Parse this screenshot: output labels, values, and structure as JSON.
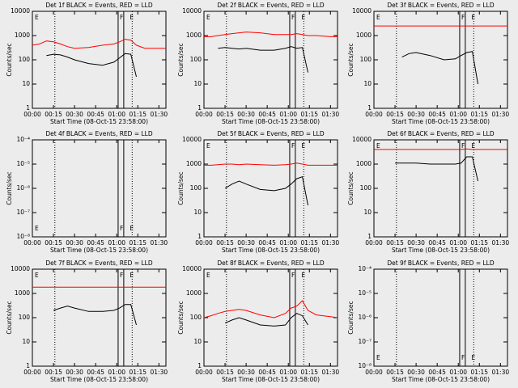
{
  "chart_data": [
    {
      "type": "line",
      "title": "Det 1f BLACK = Events, RED = LLD",
      "x_label": "Start Time (08-Oct-15 23:58:00)",
      "y_label": "Counts/sec",
      "log_scale": true,
      "x": [
        0,
        5,
        10,
        15,
        20,
        25,
        30,
        40,
        50,
        58,
        62,
        66,
        70,
        74,
        80,
        90,
        95
      ],
      "series": [
        {
          "name": "RED = LLD",
          "color": "#ff0000",
          "values": [
            400,
            450,
            600,
            550,
            450,
            350,
            300,
            320,
            400,
            450,
            550,
            700,
            650,
            400,
            300,
            300,
            300
          ]
        },
        {
          "name": "BLACK = Events",
          "color": "#000000",
          "values": [
            null,
            null,
            150,
            170,
            160,
            130,
            100,
            70,
            60,
            80,
            120,
            180,
            170,
            20,
            null,
            null,
            null
          ]
        }
      ],
      "xlim": [
        0,
        95
      ],
      "xticks": [
        {
          "value": 0,
          "label": "00:00"
        },
        {
          "value": 15,
          "label": "00:15"
        },
        {
          "value": 30,
          "label": "00:30"
        },
        {
          "value": 45,
          "label": "00:45"
        },
        {
          "value": 60,
          "label": "01:00"
        },
        {
          "value": 75,
          "label": "01:15"
        },
        {
          "value": 90,
          "label": "01:30"
        }
      ],
      "ylim": [
        1,
        10000
      ],
      "yticks": [
        1,
        10,
        100,
        1000,
        10000
      ],
      "dotted_lines": [
        16,
        71
      ],
      "solid_lines": [
        61,
        65
      ],
      "annotations": [
        "E",
        "F",
        "E"
      ]
    },
    {
      "type": "line",
      "title": "Det 2f BLACK = Events, RED = LLD",
      "x_label": "Start Time (08-Oct-15 23:58:00)",
      "y_label": "Counts/sec",
      "log_scale": true,
      "x": [
        0,
        5,
        10,
        15,
        20,
        25,
        30,
        40,
        50,
        58,
        62,
        66,
        70,
        74,
        80,
        90,
        95
      ],
      "series": [
        {
          "name": "RED = LLD",
          "color": "#ff0000",
          "values": [
            900,
            900,
            1000,
            1100,
            1200,
            1300,
            1400,
            1300,
            1100,
            1100,
            1100,
            1200,
            1100,
            1000,
            1000,
            900,
            900
          ]
        },
        {
          "name": "BLACK = Events",
          "color": "#000000",
          "values": [
            null,
            null,
            300,
            320,
            300,
            280,
            300,
            250,
            250,
            300,
            350,
            300,
            320,
            30,
            null,
            null,
            null
          ]
        }
      ],
      "xlim": [
        0,
        95
      ],
      "xticks": [
        {
          "value": 0,
          "label": "00:00"
        },
        {
          "value": 15,
          "label": "00:15"
        },
        {
          "value": 30,
          "label": "00:30"
        },
        {
          "value": 45,
          "label": "00:45"
        },
        {
          "value": 60,
          "label": "01:00"
        },
        {
          "value": 75,
          "label": "01:15"
        },
        {
          "value": 90,
          "label": "01:30"
        }
      ],
      "ylim": [
        1,
        10000
      ],
      "yticks": [
        1,
        10,
        100,
        1000,
        10000
      ],
      "dotted_lines": [
        16,
        71
      ],
      "solid_lines": [
        61,
        65
      ],
      "annotations": [
        "E",
        "F",
        "E"
      ]
    },
    {
      "type": "line",
      "title": "Det 3f BLACK = Events, RED = LLD",
      "x_label": "Start Time (08-Oct-15 23:58:00)",
      "y_label": "Counts/sec",
      "log_scale": true,
      "x": [
        0,
        5,
        10,
        15,
        20,
        25,
        30,
        40,
        50,
        58,
        62,
        66,
        70,
        74,
        80,
        90,
        95
      ],
      "series": [
        {
          "name": "RED = LLD",
          "color": "#ff0000",
          "values": [
            2500,
            2500,
            2500,
            2500,
            2500,
            2500,
            2500,
            2500,
            2500,
            2500,
            2500,
            2500,
            2500,
            2500,
            2500,
            2500,
            2500
          ]
        },
        {
          "name": "BLACK = Events",
          "color": "#000000",
          "values": [
            null,
            null,
            null,
            null,
            130,
            180,
            200,
            150,
            100,
            110,
            150,
            200,
            220,
            10,
            null,
            null,
            null
          ]
        }
      ],
      "xlim": [
        0,
        95
      ],
      "xticks": [
        {
          "value": 0,
          "label": "00:00"
        },
        {
          "value": 15,
          "label": "00:15"
        },
        {
          "value": 30,
          "label": "00:30"
        },
        {
          "value": 45,
          "label": "00:45"
        },
        {
          "value": 60,
          "label": "01:00"
        },
        {
          "value": 75,
          "label": "01:15"
        },
        {
          "value": 90,
          "label": "01:30"
        }
      ],
      "ylim": [
        1,
        10000
      ],
      "yticks": [
        1,
        10,
        100,
        1000,
        10000
      ],
      "dotted_lines": [
        16,
        71
      ],
      "solid_lines": [
        61,
        65
      ],
      "annotations": [
        "E",
        "F",
        "E"
      ]
    },
    {
      "type": "line",
      "title": "Det 4f BLACK = Events, RED = LLD",
      "x_label": "Start Time (08-Oct-15 23:58:00)",
      "y_label": "Counts/sec",
      "log_scale": true,
      "x": [
        0,
        5,
        10,
        15,
        20,
        25,
        30,
        40,
        50,
        58,
        62,
        66,
        70,
        74,
        80,
        90,
        95
      ],
      "series": [],
      "xlim": [
        0,
        95
      ],
      "xticks": [
        {
          "value": 0,
          "label": "00:00"
        },
        {
          "value": 15,
          "label": "00:15"
        },
        {
          "value": 30,
          "label": "00:30"
        },
        {
          "value": 45,
          "label": "00:45"
        },
        {
          "value": 60,
          "label": "01:00"
        },
        {
          "value": 75,
          "label": "01:15"
        },
        {
          "value": 90,
          "label": "01:30"
        }
      ],
      "ylim": [
        1e-08,
        0.0001
      ],
      "yticks": [
        {
          "value": 1e-08,
          "label": "10⁻⁸"
        },
        {
          "value": 1e-07,
          "label": "10⁻⁷"
        },
        {
          "value": 1e-06,
          "label": "10⁻⁶"
        },
        {
          "value": 1e-05,
          "label": "10⁻⁵"
        },
        {
          "value": 0.0001,
          "label": "10⁻⁴"
        }
      ],
      "dotted_lines": [
        16,
        71
      ],
      "solid_lines": [
        61,
        65
      ],
      "annotations": [
        "E",
        "F",
        "E"
      ]
    },
    {
      "type": "line",
      "title": "Det 5f BLACK = Events, RED = LLD",
      "x_label": "Start Time (08-Oct-15 23:58:00)",
      "y_label": "Counts/sec",
      "log_scale": true,
      "x": [
        0,
        5,
        10,
        15,
        20,
        25,
        30,
        40,
        50,
        58,
        62,
        66,
        70,
        74,
        80,
        90,
        95
      ],
      "series": [
        {
          "name": "RED = LLD",
          "color": "#ff0000",
          "values": [
            900,
            900,
            950,
            1000,
            1000,
            950,
            1000,
            950,
            900,
            950,
            1000,
            1100,
            1000,
            900,
            900,
            900,
            900
          ]
        },
        {
          "name": "BLACK = Events",
          "color": "#000000",
          "values": [
            null,
            null,
            null,
            100,
            150,
            200,
            150,
            90,
            80,
            100,
            150,
            250,
            300,
            20,
            null,
            null,
            null
          ]
        }
      ],
      "xlim": [
        0,
        95
      ],
      "xticks": [
        {
          "value": 0,
          "label": "00:00"
        },
        {
          "value": 15,
          "label": "00:15"
        },
        {
          "value": 30,
          "label": "00:30"
        },
        {
          "value": 45,
          "label": "00:45"
        },
        {
          "value": 60,
          "label": "01:00"
        },
        {
          "value": 75,
          "label": "01:15"
        },
        {
          "value": 90,
          "label": "01:30"
        }
      ],
      "ylim": [
        1,
        10000
      ],
      "yticks": [
        1,
        10,
        100,
        1000,
        10000
      ],
      "dotted_lines": [
        16,
        71
      ],
      "solid_lines": [
        61,
        65
      ],
      "annotations": [
        "E",
        "F",
        "E"
      ]
    },
    {
      "type": "line",
      "title": "Det 6f BLACK = Events, RED = LLD",
      "x_label": "Start Time (08-Oct-15 23:58:00)",
      "y_label": "Counts/sec",
      "log_scale": true,
      "x": [
        0,
        5,
        10,
        15,
        20,
        25,
        30,
        40,
        50,
        58,
        62,
        66,
        70,
        74,
        80,
        90,
        95
      ],
      "series": [
        {
          "name": "RED = LLD",
          "color": "#ff0000",
          "values": [
            4000,
            4000,
            4000,
            4000,
            4000,
            4000,
            4000,
            4000,
            4000,
            4000,
            4000,
            4200,
            4000,
            4000,
            4000,
            4000,
            4000
          ]
        },
        {
          "name": "BLACK = Events",
          "color": "#000000",
          "values": [
            null,
            null,
            null,
            1100,
            1100,
            1100,
            1100,
            1000,
            1000,
            1000,
            1100,
            2000,
            2000,
            200,
            null,
            null,
            null
          ]
        }
      ],
      "xlim": [
        0,
        95
      ],
      "xticks": [
        {
          "value": 0,
          "label": "00:00"
        },
        {
          "value": 15,
          "label": "00:15"
        },
        {
          "value": 30,
          "label": "00:30"
        },
        {
          "value": 45,
          "label": "00:45"
        },
        {
          "value": 60,
          "label": "01:00"
        },
        {
          "value": 75,
          "label": "01:15"
        },
        {
          "value": 90,
          "label": "01:30"
        }
      ],
      "ylim": [
        1,
        10000
      ],
      "yticks": [
        1,
        10,
        100,
        1000,
        10000
      ],
      "dotted_lines": [
        16,
        71
      ],
      "solid_lines": [
        61,
        65
      ],
      "annotations": [
        "E",
        "F",
        "E"
      ]
    },
    {
      "type": "line",
      "title": "Det 7f BLACK = Events, RED = LLD",
      "x_label": "Start Time (08-Oct-15 23:58:00)",
      "y_label": "Counts/sec",
      "log_scale": true,
      "x": [
        0,
        5,
        10,
        15,
        20,
        25,
        30,
        40,
        50,
        58,
        62,
        66,
        70,
        74,
        80,
        90,
        95
      ],
      "series": [
        {
          "name": "RED = LLD",
          "color": "#ff0000",
          "values": [
            1800,
            1800,
            1800,
            1800,
            1800,
            1800,
            1800,
            1800,
            1800,
            1800,
            1800,
            1800,
            1800,
            1800,
            1800,
            1800,
            1800
          ]
        },
        {
          "name": "BLACK = Events",
          "color": "#000000",
          "values": [
            null,
            null,
            null,
            200,
            250,
            300,
            250,
            180,
            180,
            200,
            250,
            350,
            350,
            50,
            null,
            null,
            null
          ]
        }
      ],
      "xlim": [
        0,
        95
      ],
      "xticks": [
        {
          "value": 0,
          "label": "00:00"
        },
        {
          "value": 15,
          "label": "00:15"
        },
        {
          "value": 30,
          "label": "00:30"
        },
        {
          "value": 45,
          "label": "00:45"
        },
        {
          "value": 60,
          "label": "01:00"
        },
        {
          "value": 75,
          "label": "01:15"
        },
        {
          "value": 90,
          "label": "01:30"
        }
      ],
      "ylim": [
        1,
        10000
      ],
      "yticks": [
        1,
        10,
        100,
        1000,
        10000
      ],
      "dotted_lines": [
        16,
        71
      ],
      "solid_lines": [
        61,
        65
      ],
      "annotations": [
        "E",
        "F",
        "E"
      ]
    },
    {
      "type": "line",
      "title": "Det 8f BLACK = Events, RED = LLD",
      "x_label": "Start Time (08-Oct-15 23:58:00)",
      "y_label": "Counts/sec",
      "log_scale": true,
      "x": [
        0,
        5,
        10,
        15,
        20,
        25,
        30,
        40,
        50,
        58,
        62,
        66,
        70,
        74,
        80,
        90,
        95
      ],
      "series": [
        {
          "name": "RED = LLD",
          "color": "#ff0000",
          "values": [
            100,
            120,
            150,
            180,
            200,
            220,
            200,
            130,
            100,
            150,
            250,
            300,
            500,
            200,
            130,
            110,
            100
          ]
        },
        {
          "name": "BLACK = Events",
          "color": "#000000",
          "values": [
            null,
            null,
            null,
            60,
            80,
            100,
            80,
            50,
            45,
            50,
            100,
            150,
            120,
            50,
            null,
            null,
            null
          ]
        }
      ],
      "xlim": [
        0,
        95
      ],
      "xticks": [
        {
          "value": 0,
          "label": "00:00"
        },
        {
          "value": 15,
          "label": "00:15"
        },
        {
          "value": 30,
          "label": "00:30"
        },
        {
          "value": 45,
          "label": "00:45"
        },
        {
          "value": 60,
          "label": "01:00"
        },
        {
          "value": 75,
          "label": "01:15"
        },
        {
          "value": 90,
          "label": "01:30"
        }
      ],
      "ylim": [
        1,
        10000
      ],
      "yticks": [
        1,
        10,
        100,
        1000,
        10000
      ],
      "dotted_lines": [
        16,
        71
      ],
      "solid_lines": [
        61,
        65
      ],
      "annotations": [
        "E",
        "F",
        "E"
      ]
    },
    {
      "type": "line",
      "title": "Det 9f BLACK = Events, RED = LLD",
      "x_label": "Start Time (08-Oct-15 23:58:00)",
      "y_label": "Counts/sec",
      "log_scale": true,
      "x": [
        0,
        5,
        10,
        15,
        20,
        25,
        30,
        40,
        50,
        58,
        62,
        66,
        70,
        74,
        80,
        90,
        95
      ],
      "series": [],
      "xlim": [
        0,
        95
      ],
      "xticks": [
        {
          "value": 0,
          "label": "00:00"
        },
        {
          "value": 15,
          "label": "00:15"
        },
        {
          "value": 30,
          "label": "00:30"
        },
        {
          "value": 45,
          "label": "00:45"
        },
        {
          "value": 60,
          "label": "01:00"
        },
        {
          "value": 75,
          "label": "01:15"
        },
        {
          "value": 90,
          "label": "01:30"
        }
      ],
      "ylim": [
        1e-08,
        0.0001
      ],
      "yticks": [
        {
          "value": 1e-08,
          "label": "10⁻⁸"
        },
        {
          "value": 1e-07,
          "label": "10⁻⁷"
        },
        {
          "value": 1e-06,
          "label": "10⁻⁶"
        },
        {
          "value": 1e-05,
          "label": "10⁻⁵"
        },
        {
          "value": 0.0001,
          "label": "10⁻⁴"
        }
      ],
      "dotted_lines": [
        16,
        71
      ],
      "solid_lines": [
        61,
        65
      ],
      "annotations": [
        "E",
        "F",
        "E"
      ]
    }
  ]
}
